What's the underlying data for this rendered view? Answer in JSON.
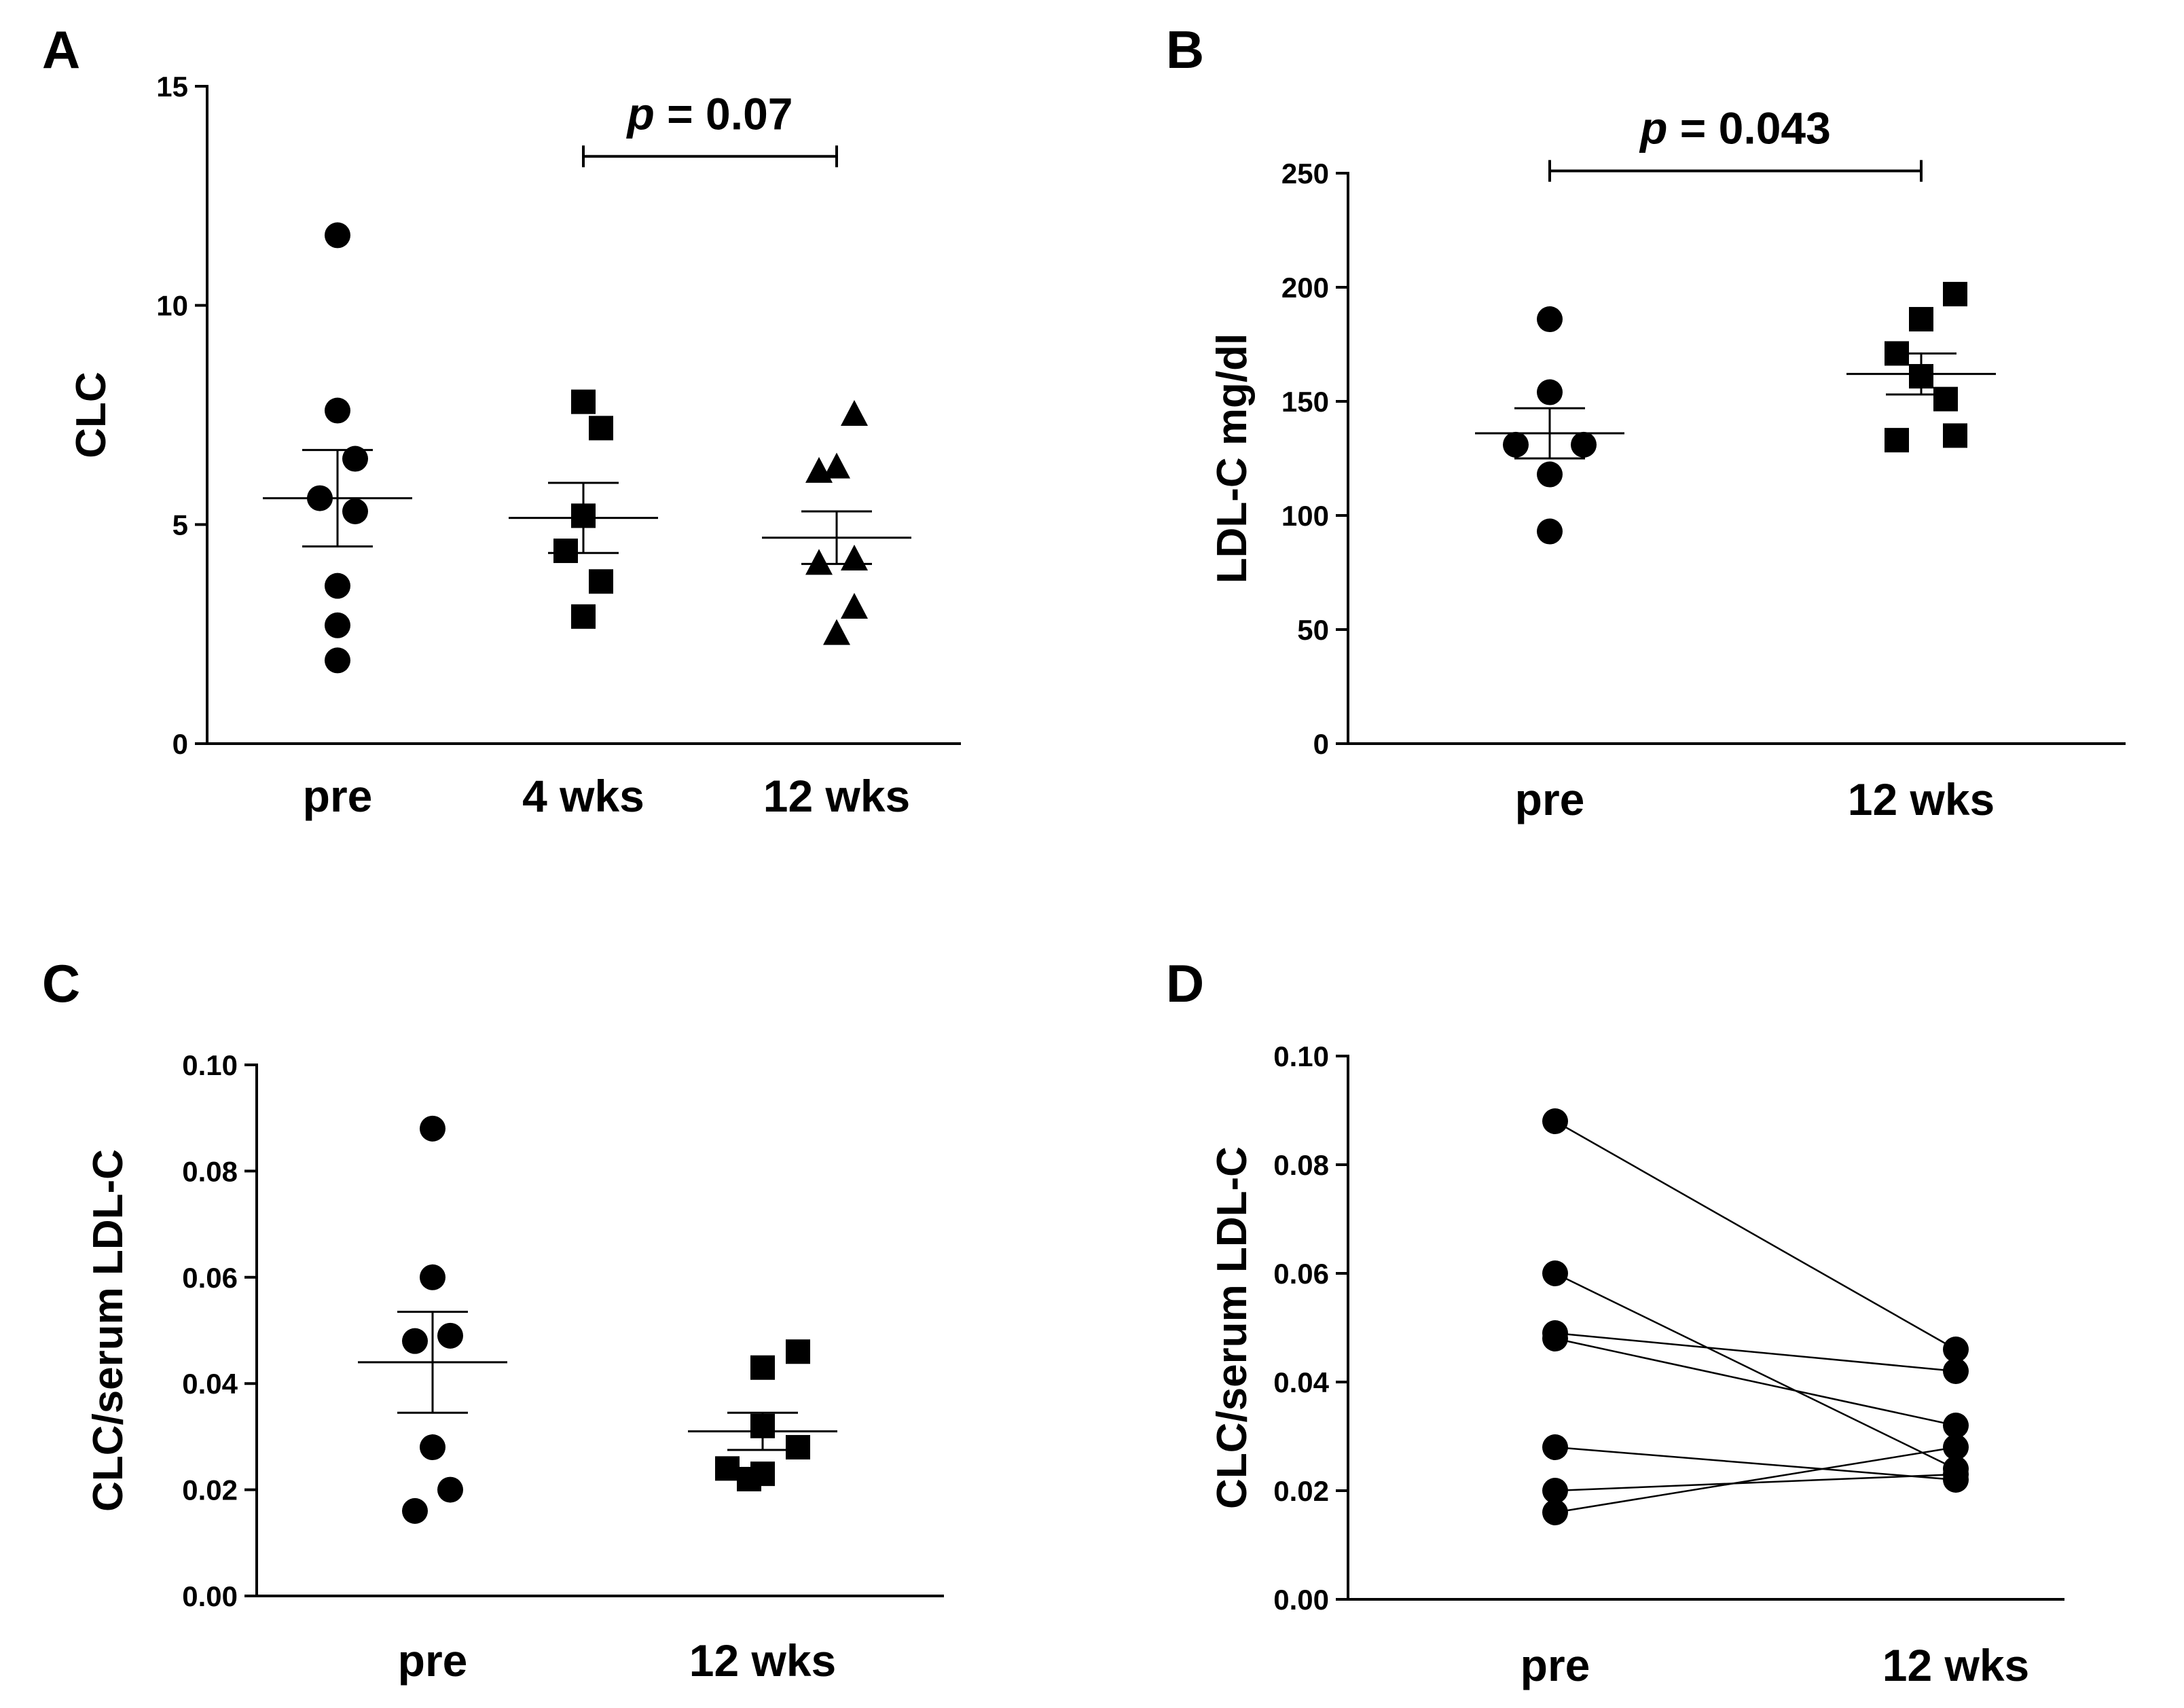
{
  "chart_data": [
    {
      "panel": "A",
      "type": "scatter",
      "ylabel": "CLC",
      "ylim": [
        0,
        15
      ],
      "yticks": [
        "0",
        "5",
        "10",
        "15"
      ],
      "categories": [
        "pre",
        "4 wks",
        "12 wks"
      ],
      "markers": [
        "circle",
        "square",
        "triangle"
      ],
      "series": [
        {
          "name": "pre",
          "values": [
            11.6,
            7.6,
            6.5,
            5.6,
            5.3,
            3.6,
            2.7,
            1.9
          ],
          "mean": 5.6,
          "sem_low": 4.5,
          "sem_high": 6.7
        },
        {
          "name": "4 wks",
          "values": [
            7.8,
            7.2,
            5.2,
            4.4,
            3.7,
            2.9
          ],
          "mean": 5.15,
          "sem_low": 4.35,
          "sem_high": 5.95
        },
        {
          "name": "12 wks",
          "values": [
            7.5,
            6.3,
            6.2,
            4.2,
            4.1,
            3.1,
            2.5
          ],
          "mean": 4.7,
          "sem_low": 4.1,
          "sem_high": 5.3
        }
      ],
      "annotation": {
        "prefix": "p",
        "text": " = 0.07",
        "from": "4 wks",
        "to": "12 wks",
        "y": 13.4
      }
    },
    {
      "panel": "B",
      "type": "scatter",
      "ylabel": "LDL-C mg/dl",
      "ylim": [
        0,
        250
      ],
      "yticks": [
        "0",
        "50",
        "100",
        "150",
        "200",
        "250"
      ],
      "categories": [
        "pre",
        "12 wks"
      ],
      "markers": [
        "circle",
        "square"
      ],
      "series": [
        {
          "name": "pre",
          "values": [
            186,
            154,
            131,
            131,
            118,
            93
          ],
          "mean": 136,
          "sem_low": 125,
          "sem_high": 147
        },
        {
          "name": "12 wks",
          "values": [
            197,
            186,
            171,
            161,
            151,
            135,
            133
          ],
          "mean": 162,
          "sem_low": 153,
          "sem_high": 171
        },
        {
          "name": "_offsets",
          "values": []
        }
      ],
      "annotation": {
        "prefix": "p",
        "text": " = 0.043",
        "from": "pre",
        "to": "12 wks",
        "y": 251
      }
    },
    {
      "panel": "C",
      "type": "scatter",
      "ylabel": "CLC/serum LDL-C",
      "ylim": [
        0,
        0.1
      ],
      "yticks": [
        "0.00",
        "0.02",
        "0.04",
        "0.06",
        "0.08",
        "0.10"
      ],
      "categories": [
        "pre",
        "12 wks"
      ],
      "markers": [
        "circle",
        "square"
      ],
      "series": [
        {
          "name": "pre",
          "values": [
            0.088,
            0.06,
            0.049,
            0.048,
            0.028,
            0.02,
            0.016
          ],
          "mean": 0.044,
          "sem_low": 0.0345,
          "sem_high": 0.0535
        },
        {
          "name": "12 wks",
          "values": [
            0.046,
            0.043,
            0.032,
            0.028,
            0.024,
            0.023,
            0.022
          ],
          "mean": 0.031,
          "sem_low": 0.0275,
          "sem_high": 0.0345
        }
      ]
    },
    {
      "panel": "D",
      "type": "line",
      "ylabel": "CLC/serum LDL-C",
      "ylim": [
        0,
        0.1
      ],
      "yticks": [
        "0.00",
        "0.02",
        "0.04",
        "0.06",
        "0.08",
        "0.10"
      ],
      "categories": [
        "pre",
        "12 wks"
      ],
      "pairs": [
        [
          0.088,
          0.046
        ],
        [
          0.06,
          0.024
        ],
        [
          0.049,
          0.042
        ],
        [
          0.048,
          0.032
        ],
        [
          0.028,
          0.022
        ],
        [
          0.02,
          0.023
        ],
        [
          0.016,
          0.028
        ]
      ]
    }
  ]
}
